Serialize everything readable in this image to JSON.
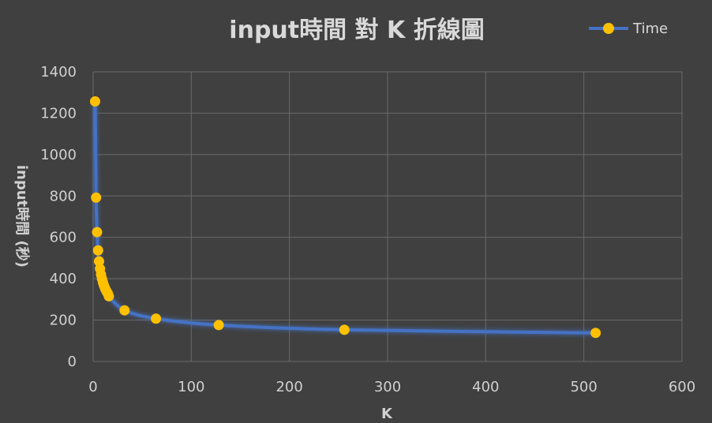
{
  "chart_data": {
    "type": "scatter",
    "title": "input時間 對  K  折線圖",
    "xlabel": "K",
    "ylabel": "input時間 (秒)",
    "xlim": [
      0,
      600
    ],
    "ylim": [
      0,
      1400
    ],
    "xticks": [
      0,
      100,
      200,
      300,
      400,
      500,
      600
    ],
    "yticks": [
      0,
      200,
      400,
      600,
      800,
      1000,
      1200,
      1400
    ],
    "grid": true,
    "legend": "top-right",
    "smooth_line": true,
    "line_color": "#4472c4",
    "marker_color": "#ffc000",
    "series": [
      {
        "name": "Time",
        "x": [
          2,
          3,
          4,
          5,
          6,
          7,
          8,
          9,
          10,
          11,
          12,
          13,
          14,
          15,
          16,
          32,
          64,
          128,
          256,
          512
        ],
        "y": [
          1257,
          792,
          625,
          537,
          484,
          448,
          420,
          399,
          382,
          367,
          355,
          345,
          336,
          328,
          315,
          247,
          207,
          176,
          153,
          138
        ]
      }
    ]
  }
}
